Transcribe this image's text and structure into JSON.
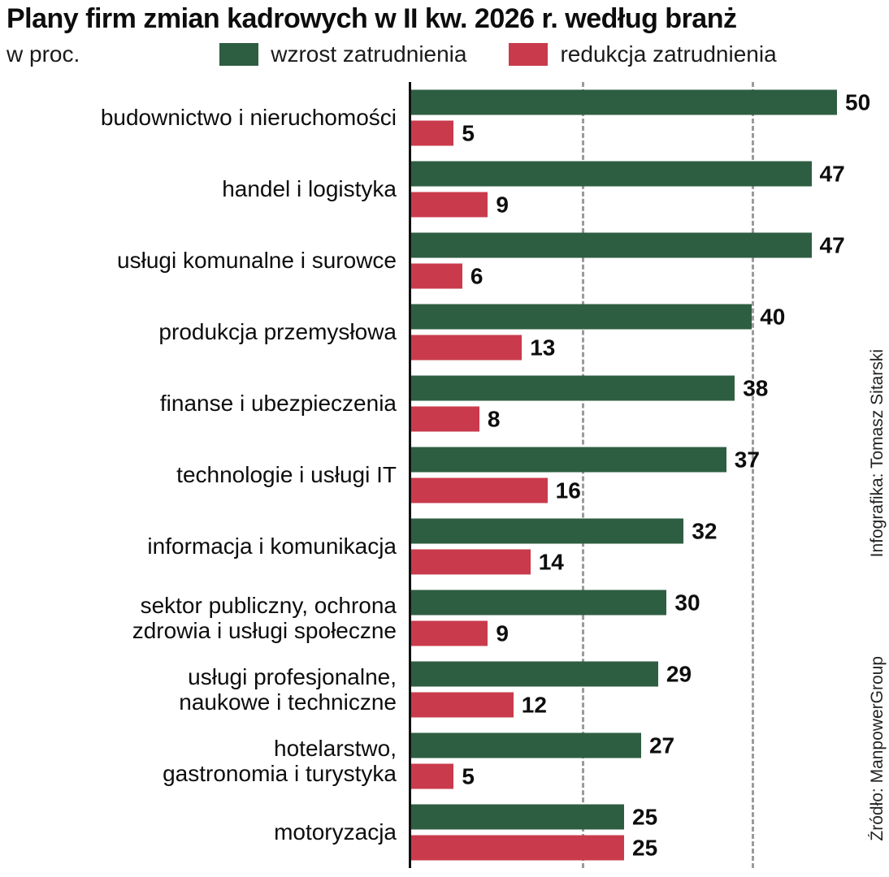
{
  "header": {
    "title": "Plany firm zmian kadrowych w II kw. 2026 r. według branż",
    "unit_label": "w proc.",
    "legend": [
      {
        "label": "wzrost zatrudnienia",
        "color": "#2e5e42"
      },
      {
        "label": "redukcja zatrudnienia",
        "color": "#c93b4c"
      }
    ]
  },
  "credits": {
    "infographic": "Infografika: Tomasz Sitarski",
    "source": "Źródło: ManpowerGroup"
  },
  "chart_data": {
    "type": "bar",
    "orientation": "horizontal",
    "title": "Plany firm zmian kadrowych w II kw. 2026 r. według branż",
    "unit": "proc.",
    "xlim": [
      0,
      50
    ],
    "gridlines_x": [
      20,
      40
    ],
    "grid": "dashed-vertical",
    "legend_position": "top",
    "categories": [
      "budownictwo i nieruchomości",
      "handel i logistyka",
      "usługi komunalne i surowce",
      "produkcja przemysłowa",
      "finanse i ubezpieczenia",
      "technologie i usługi IT",
      "informacja i komunikacja",
      "sektor publiczny, ochrona\nzdrowia i usługi społeczne",
      "usługi profesjonalne,\nnaukowe i techniczne",
      "hotelarstwo,\ngastronomia i turystyka",
      "motoryzacja"
    ],
    "series": [
      {
        "name": "wzrost zatrudnienia",
        "color": "#2e5e42",
        "values": [
          50,
          47,
          47,
          40,
          38,
          37,
          32,
          30,
          29,
          27,
          25
        ]
      },
      {
        "name": "redukcja zatrudnienia",
        "color": "#c93b4c",
        "values": [
          5,
          9,
          6,
          13,
          8,
          16,
          14,
          9,
          12,
          5,
          25
        ]
      }
    ]
  }
}
